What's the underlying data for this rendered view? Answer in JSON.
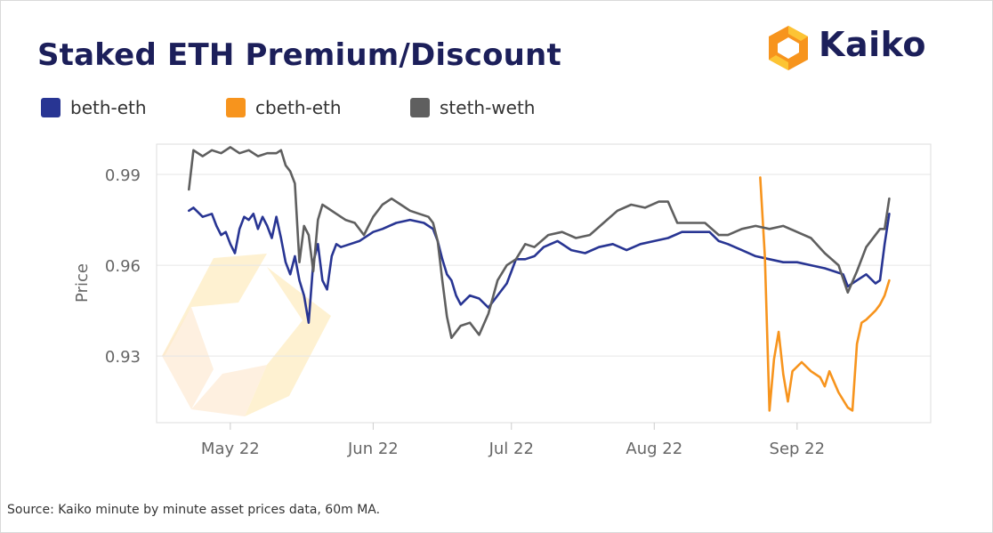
{
  "title": "Staked ETH Premium/Discount",
  "logo": {
    "text": "Kaiko",
    "icon": "kaiko-hexagon-icon",
    "colors": {
      "orange": "#f7941d",
      "yellow": "#fcc434",
      "navy": "#1c1f5a"
    }
  },
  "source": "Source: Kaiko minute by minute asset prices data, 60m MA.",
  "chart_data": {
    "type": "line",
    "title": "Staked ETH Premium/Discount",
    "xlabel": "",
    "ylabel": "Price",
    "ylim": [
      0.908,
      1.0
    ],
    "xlim": [
      "2022-04-15",
      "2022-09-30"
    ],
    "yticks": [
      {
        "value": 0.93,
        "label": "0.93"
      },
      {
        "value": 0.96,
        "label": "0.96"
      },
      {
        "value": 0.99,
        "label": "0.99"
      }
    ],
    "xticks": [
      {
        "value": "2022-05-01",
        "label": "May 22"
      },
      {
        "value": "2022-06-01",
        "label": "Jun 22"
      },
      {
        "value": "2022-07-01",
        "label": "Jul 22"
      },
      {
        "value": "2022-08-01",
        "label": "Aug 22"
      },
      {
        "value": "2022-09-01",
        "label": "Sep 22"
      }
    ],
    "grid": true,
    "legend_position": "top-left",
    "series": [
      {
        "name": "beth-eth",
        "color": "#283593",
        "points": [
          [
            "2022-04-22",
            0.978
          ],
          [
            "2022-04-23",
            0.979
          ],
          [
            "2022-04-25",
            0.976
          ],
          [
            "2022-04-27",
            0.977
          ],
          [
            "2022-04-28",
            0.973
          ],
          [
            "2022-04-29",
            0.97
          ],
          [
            "2022-04-30",
            0.971
          ],
          [
            "2022-05-01",
            0.967
          ],
          [
            "2022-05-02",
            0.964
          ],
          [
            "2022-05-03",
            0.972
          ],
          [
            "2022-05-04",
            0.976
          ],
          [
            "2022-05-05",
            0.975
          ],
          [
            "2022-05-06",
            0.977
          ],
          [
            "2022-05-07",
            0.972
          ],
          [
            "2022-05-08",
            0.976
          ],
          [
            "2022-05-09",
            0.973
          ],
          [
            "2022-05-10",
            0.969
          ],
          [
            "2022-05-11",
            0.976
          ],
          [
            "2022-05-12",
            0.969
          ],
          [
            "2022-05-13",
            0.961
          ],
          [
            "2022-05-14",
            0.957
          ],
          [
            "2022-05-15",
            0.963
          ],
          [
            "2022-05-16",
            0.955
          ],
          [
            "2022-05-17",
            0.95
          ],
          [
            "2022-05-18",
            0.941
          ],
          [
            "2022-05-19",
            0.961
          ],
          [
            "2022-05-20",
            0.967
          ],
          [
            "2022-05-21",
            0.955
          ],
          [
            "2022-05-22",
            0.952
          ],
          [
            "2022-05-23",
            0.963
          ],
          [
            "2022-05-24",
            0.967
          ],
          [
            "2022-05-25",
            0.966
          ],
          [
            "2022-05-27",
            0.967
          ],
          [
            "2022-05-29",
            0.968
          ],
          [
            "2022-06-01",
            0.971
          ],
          [
            "2022-06-03",
            0.972
          ],
          [
            "2022-06-06",
            0.974
          ],
          [
            "2022-06-09",
            0.975
          ],
          [
            "2022-06-12",
            0.974
          ],
          [
            "2022-06-14",
            0.972
          ],
          [
            "2022-06-15",
            0.968
          ],
          [
            "2022-06-16",
            0.962
          ],
          [
            "2022-06-17",
            0.957
          ],
          [
            "2022-06-18",
            0.955
          ],
          [
            "2022-06-19",
            0.95
          ],
          [
            "2022-06-20",
            0.947
          ],
          [
            "2022-06-22",
            0.95
          ],
          [
            "2022-06-24",
            0.949
          ],
          [
            "2022-06-26",
            0.946
          ],
          [
            "2022-06-28",
            0.95
          ],
          [
            "2022-06-30",
            0.954
          ],
          [
            "2022-07-01",
            0.958
          ],
          [
            "2022-07-02",
            0.962
          ],
          [
            "2022-07-04",
            0.962
          ],
          [
            "2022-07-06",
            0.963
          ],
          [
            "2022-07-08",
            0.966
          ],
          [
            "2022-07-11",
            0.968
          ],
          [
            "2022-07-14",
            0.965
          ],
          [
            "2022-07-17",
            0.964
          ],
          [
            "2022-07-20",
            0.966
          ],
          [
            "2022-07-23",
            0.967
          ],
          [
            "2022-07-26",
            0.965
          ],
          [
            "2022-07-29",
            0.967
          ],
          [
            "2022-08-01",
            0.968
          ],
          [
            "2022-08-04",
            0.969
          ],
          [
            "2022-08-07",
            0.971
          ],
          [
            "2022-08-10",
            0.971
          ],
          [
            "2022-08-13",
            0.971
          ],
          [
            "2022-08-15",
            0.968
          ],
          [
            "2022-08-17",
            0.967
          ],
          [
            "2022-08-20",
            0.965
          ],
          [
            "2022-08-23",
            0.963
          ],
          [
            "2022-08-26",
            0.962
          ],
          [
            "2022-08-29",
            0.961
          ],
          [
            "2022-09-01",
            0.961
          ],
          [
            "2022-09-04",
            0.96
          ],
          [
            "2022-09-07",
            0.959
          ],
          [
            "2022-09-09",
            0.958
          ],
          [
            "2022-09-11",
            0.957
          ],
          [
            "2022-09-12",
            0.953
          ],
          [
            "2022-09-14",
            0.955
          ],
          [
            "2022-09-16",
            0.957
          ],
          [
            "2022-09-18",
            0.954
          ],
          [
            "2022-09-19",
            0.955
          ],
          [
            "2022-09-20",
            0.967
          ],
          [
            "2022-09-21",
            0.977
          ]
        ]
      },
      {
        "name": "cbeth-eth",
        "color": "#f7941d",
        "points": [
          [
            "2022-08-24",
            0.989
          ],
          [
            "2022-08-25",
            0.963
          ],
          [
            "2022-08-26",
            0.912
          ],
          [
            "2022-08-27",
            0.929
          ],
          [
            "2022-08-28",
            0.938
          ],
          [
            "2022-08-29",
            0.924
          ],
          [
            "2022-08-30",
            0.915
          ],
          [
            "2022-08-31",
            0.925
          ],
          [
            "2022-09-02",
            0.928
          ],
          [
            "2022-09-04",
            0.925
          ],
          [
            "2022-09-06",
            0.923
          ],
          [
            "2022-09-07",
            0.92
          ],
          [
            "2022-09-08",
            0.925
          ],
          [
            "2022-09-10",
            0.918
          ],
          [
            "2022-09-12",
            0.913
          ],
          [
            "2022-09-13",
            0.912
          ],
          [
            "2022-09-14",
            0.934
          ],
          [
            "2022-09-15",
            0.941
          ],
          [
            "2022-09-16",
            0.942
          ],
          [
            "2022-09-18",
            0.945
          ],
          [
            "2022-09-19",
            0.947
          ],
          [
            "2022-09-20",
            0.95
          ],
          [
            "2022-09-21",
            0.955
          ]
        ]
      },
      {
        "name": "steth-weth",
        "color": "#5f5f5f",
        "points": [
          [
            "2022-04-22",
            0.985
          ],
          [
            "2022-04-23",
            0.998
          ],
          [
            "2022-04-25",
            0.996
          ],
          [
            "2022-04-27",
            0.998
          ],
          [
            "2022-04-29",
            0.997
          ],
          [
            "2022-05-01",
            0.999
          ],
          [
            "2022-05-03",
            0.997
          ],
          [
            "2022-05-05",
            0.998
          ],
          [
            "2022-05-07",
            0.996
          ],
          [
            "2022-05-09",
            0.997
          ],
          [
            "2022-05-11",
            0.997
          ],
          [
            "2022-05-12",
            0.998
          ],
          [
            "2022-05-13",
            0.993
          ],
          [
            "2022-05-14",
            0.991
          ],
          [
            "2022-05-15",
            0.987
          ],
          [
            "2022-05-16",
            0.961
          ],
          [
            "2022-05-17",
            0.973
          ],
          [
            "2022-05-18",
            0.97
          ],
          [
            "2022-05-19",
            0.958
          ],
          [
            "2022-05-20",
            0.975
          ],
          [
            "2022-05-21",
            0.98
          ],
          [
            "2022-05-22",
            0.979
          ],
          [
            "2022-05-24",
            0.977
          ],
          [
            "2022-05-26",
            0.975
          ],
          [
            "2022-05-28",
            0.974
          ],
          [
            "2022-05-30",
            0.97
          ],
          [
            "2022-06-01",
            0.976
          ],
          [
            "2022-06-03",
            0.98
          ],
          [
            "2022-06-05",
            0.982
          ],
          [
            "2022-06-07",
            0.98
          ],
          [
            "2022-06-09",
            0.978
          ],
          [
            "2022-06-11",
            0.977
          ],
          [
            "2022-06-13",
            0.976
          ],
          [
            "2022-06-14",
            0.974
          ],
          [
            "2022-06-15",
            0.968
          ],
          [
            "2022-06-16",
            0.955
          ],
          [
            "2022-06-17",
            0.943
          ],
          [
            "2022-06-18",
            0.936
          ],
          [
            "2022-06-20",
            0.94
          ],
          [
            "2022-06-22",
            0.941
          ],
          [
            "2022-06-24",
            0.937
          ],
          [
            "2022-06-26",
            0.944
          ],
          [
            "2022-06-28",
            0.955
          ],
          [
            "2022-06-30",
            0.96
          ],
          [
            "2022-07-02",
            0.962
          ],
          [
            "2022-07-04",
            0.967
          ],
          [
            "2022-07-06",
            0.966
          ],
          [
            "2022-07-09",
            0.97
          ],
          [
            "2022-07-12",
            0.971
          ],
          [
            "2022-07-15",
            0.969
          ],
          [
            "2022-07-18",
            0.97
          ],
          [
            "2022-07-21",
            0.974
          ],
          [
            "2022-07-24",
            0.978
          ],
          [
            "2022-07-27",
            0.98
          ],
          [
            "2022-07-30",
            0.979
          ],
          [
            "2022-08-02",
            0.981
          ],
          [
            "2022-08-04",
            0.981
          ],
          [
            "2022-08-06",
            0.974
          ],
          [
            "2022-08-09",
            0.974
          ],
          [
            "2022-08-12",
            0.974
          ],
          [
            "2022-08-15",
            0.97
          ],
          [
            "2022-08-17",
            0.97
          ],
          [
            "2022-08-20",
            0.972
          ],
          [
            "2022-08-23",
            0.973
          ],
          [
            "2022-08-26",
            0.972
          ],
          [
            "2022-08-29",
            0.973
          ],
          [
            "2022-09-01",
            0.971
          ],
          [
            "2022-09-04",
            0.969
          ],
          [
            "2022-09-07",
            0.964
          ],
          [
            "2022-09-10",
            0.96
          ],
          [
            "2022-09-12",
            0.951
          ],
          [
            "2022-09-14",
            0.958
          ],
          [
            "2022-09-16",
            0.966
          ],
          [
            "2022-09-18",
            0.97
          ],
          [
            "2022-09-19",
            0.972
          ],
          [
            "2022-09-20",
            0.972
          ],
          [
            "2022-09-21",
            0.982
          ]
        ]
      }
    ]
  }
}
